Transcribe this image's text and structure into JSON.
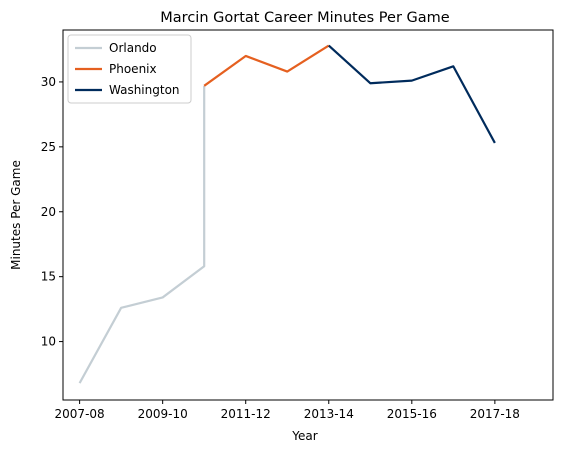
{
  "chart_data": {
    "type": "line",
    "title": "Marcin Gortat Career Minutes Per Game",
    "xlabel": "Year",
    "ylabel": "Minutes Per Game",
    "x_ticks": [
      "2007-08",
      "2009-10",
      "2011-12",
      "2013-14",
      "2015-16",
      "2017-18"
    ],
    "y_ticks": [
      10,
      15,
      20,
      25,
      30
    ],
    "xlim": [
      2006.6,
      2018.4
    ],
    "ylim": [
      5.5,
      34.0
    ],
    "grid": false,
    "legend_position": "top-left",
    "series": [
      {
        "name": "Orlando",
        "color": "#c4ced4",
        "points": [
          [
            2007,
            6.8
          ],
          [
            2008,
            12.6
          ],
          [
            2009,
            13.4
          ],
          [
            2010,
            15.8
          ],
          [
            2010,
            29.7
          ]
        ]
      },
      {
        "name": "Phoenix",
        "color": "#e56020",
        "points": [
          [
            2010,
            29.7
          ],
          [
            2011,
            32.0
          ],
          [
            2012,
            30.8
          ],
          [
            2013,
            32.8
          ]
        ]
      },
      {
        "name": "Washington",
        "color": "#002b5c",
        "points": [
          [
            2013,
            32.8
          ],
          [
            2014,
            29.9
          ],
          [
            2015,
            30.1
          ],
          [
            2016,
            31.2
          ],
          [
            2017,
            25.3
          ]
        ]
      }
    ]
  }
}
